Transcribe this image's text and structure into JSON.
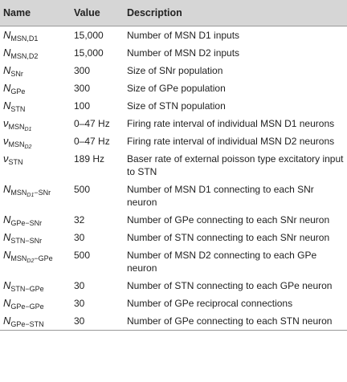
{
  "table": {
    "header": [
      "Name",
      "Value",
      "Description"
    ],
    "rows": [
      {
        "symbol": "N",
        "sub": "MSN,D1",
        "value": "15,000",
        "description": "Number of MSN D1 inputs"
      },
      {
        "symbol": "N",
        "sub": "MSN,D2",
        "value": "15,000",
        "description": "Number of MSN D2 inputs"
      },
      {
        "symbol": "N",
        "sub": "SNr",
        "value": "300",
        "description": "Size of SNr population"
      },
      {
        "symbol": "N",
        "sub": "GPe",
        "value": "300",
        "description": "Size of GPe population"
      },
      {
        "symbol": "N",
        "sub": "STN",
        "value": "100",
        "description": "Size of STN population"
      },
      {
        "symbol": "ν",
        "sub": "MSN",
        "subsub": "D1",
        "value": "0–47 Hz",
        "description": "Firing rate interval of individual MSN D1 neurons"
      },
      {
        "symbol": "ν",
        "sub": "MSN",
        "subsub": "D2",
        "value": "0–47 Hz",
        "description": "Firing rate interval of individual MSN D2 neurons"
      },
      {
        "symbol": "ν",
        "sub": "STN",
        "value": "189 Hz",
        "description": "Baser rate of external poisson type excitatory input to STN"
      },
      {
        "symbol": "N",
        "sub": "MSN",
        "subsub": "D1",
        "subtail": "−SNr",
        "value": "500",
        "description": "Number of MSN D1 connecting to each SNr neuron"
      },
      {
        "symbol": "N",
        "sub": "GPe−SNr",
        "value": "32",
        "description": "Number of GPe connecting to each SNr neuron"
      },
      {
        "symbol": "N",
        "sub": "STN−SNr",
        "value": "30",
        "description": "Number of STN connecting to each SNr neuron"
      },
      {
        "symbol": "N",
        "sub": "MSN",
        "subsub": "D2",
        "subtail": "−GPe",
        "value": "500",
        "description": "Number of MSN D2 connecting to each GPe neuron"
      },
      {
        "symbol": "N",
        "sub": "STN−GPe",
        "value": "30",
        "description": "Number of STN connecting to each GPe neuron"
      },
      {
        "symbol": "N",
        "sub": "GPe−GPe",
        "value": "30",
        "description": "Number of GPe reciprocal connections"
      },
      {
        "symbol": "N",
        "sub": "GPe−STN",
        "value": "30",
        "description": "Number of GPe connecting to each STN neuron"
      }
    ]
  }
}
